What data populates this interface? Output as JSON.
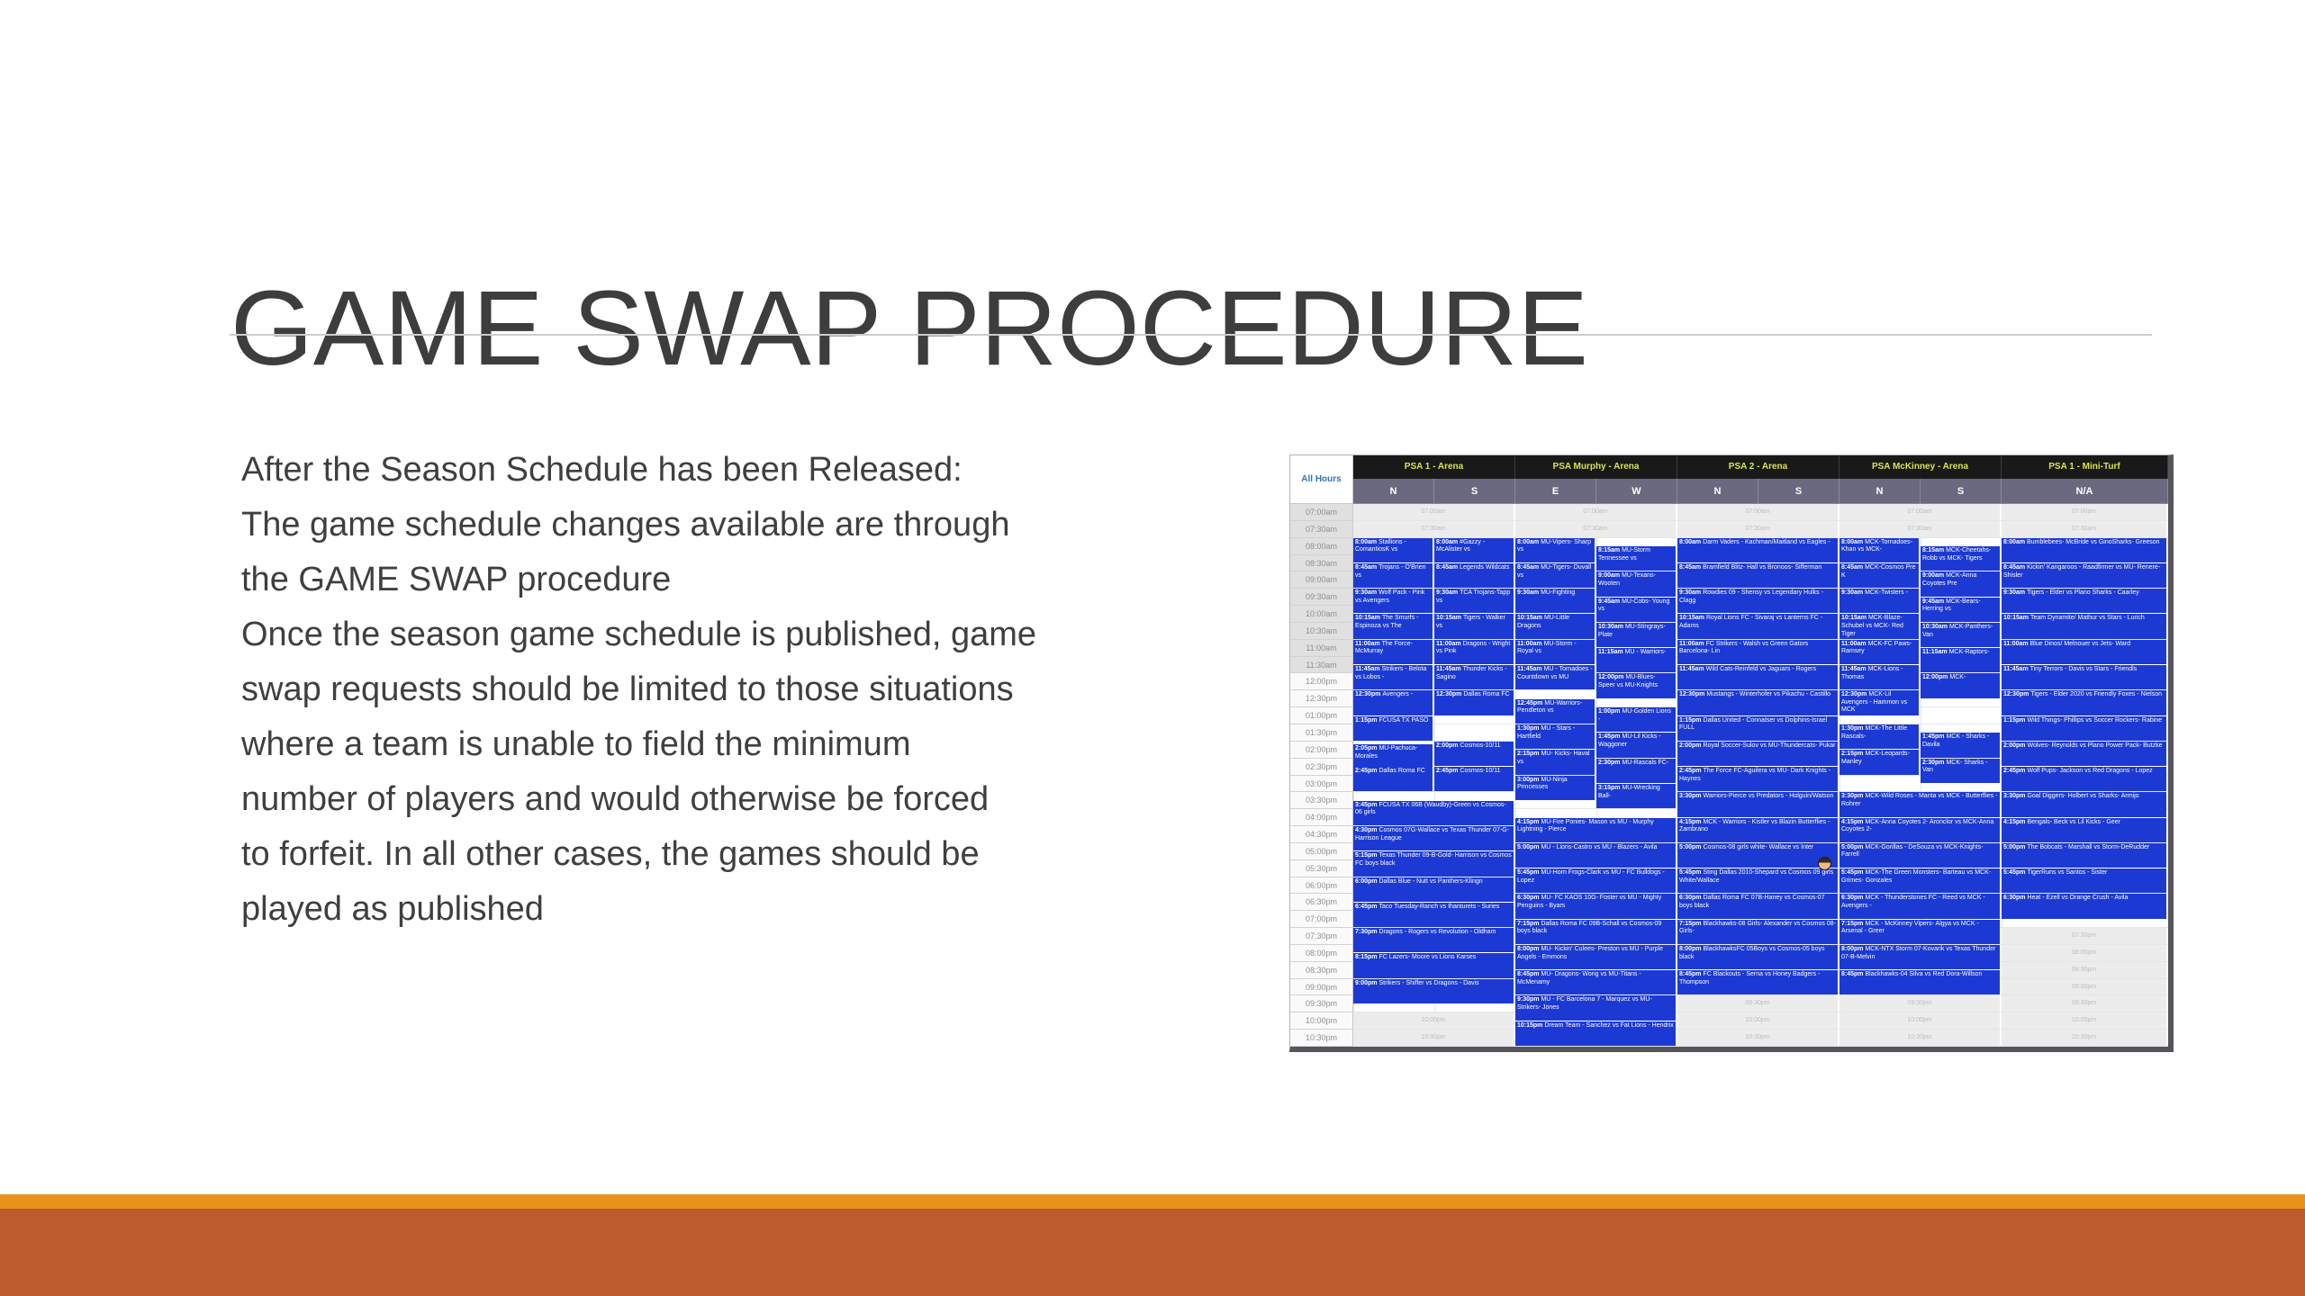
{
  "slide": {
    "title": "GAME SWAP PROCEDURE",
    "paragraphs": [
      "After the Season Schedule has been Released:",
      "The game schedule changes available are through\nthe GAME SWAP procedure",
      "Once the season game schedule is published, game\nswap requests should be limited to those situations\nwhere a team is unable to field the minimum\nnumber of players and would otherwise be forced\nto forfeit.  In all other cases, the games should be\nplayed as published"
    ],
    "accent_colors": {
      "thin_bar": "#e8921c",
      "thick_bar": "#bc5b2d",
      "text": "#3f3f3f"
    }
  },
  "schedule": {
    "corner_label": "All Hours",
    "default_duration_min": 45,
    "colors": {
      "event_blue": "#1c3ad3",
      "venue_header_bg": "#191919",
      "venue_header_text": "#d8e44c",
      "subheader_bg": "#6b697f",
      "empty_slot_bg": "#ececec",
      "corner_text": "#2e74b5"
    },
    "time_slots": [
      "07:00am",
      "07:30am",
      "08:00am",
      "08:30am",
      "09:00am",
      "09:30am",
      "10:00am",
      "10:30am",
      "11:00am",
      "11:30am",
      "12:00pm",
      "12:30pm",
      "01:00pm",
      "01:30pm",
      "02:00pm",
      "02:30pm",
      "03:00pm",
      "03:30pm",
      "04:00pm",
      "04:30pm",
      "05:00pm",
      "05:30pm",
      "06:00pm",
      "06:30pm",
      "07:00pm",
      "07:30pm",
      "08:00pm",
      "08:30pm",
      "09:00pm",
      "09:30pm",
      "10:00pm",
      "10:30pm"
    ],
    "empty_slot_labels_leading": [
      "07:00am",
      "07:30am"
    ],
    "venues": [
      {
        "name": "PSA 1 - Arena",
        "subs": [
          "N",
          "S"
        ],
        "empty_slot_labels_trailing": [
          "10:00pm",
          "10:30pm"
        ]
      },
      {
        "name": "PSA Murphy - Arena",
        "subs": [
          "E",
          "W"
        ],
        "empty_slot_labels_trailing": []
      },
      {
        "name": "PSA 2 - Arena",
        "subs": [
          "N",
          "S"
        ],
        "empty_slot_labels_trailing": [
          "09:30pm",
          "10:00pm",
          "10:30pm"
        ]
      },
      {
        "name": "PSA McKinney - Arena",
        "subs": [
          "N",
          "S"
        ],
        "empty_slot_labels_trailing": [
          "09:30pm",
          "10:00pm",
          "10:30pm"
        ]
      },
      {
        "name": "PSA 1 - Mini-Turf",
        "subs": [
          "N/A"
        ],
        "empty_slot_labels_trailing": [
          "07:30pm",
          "08:00pm",
          "08:30pm",
          "09:00pm",
          "09:30pm",
          "10:00pm",
          "10:30pm"
        ]
      }
    ],
    "events": [
      {
        "venue": 0,
        "col": "N",
        "start": "8:00am",
        "teams": "Stallions - ComantiosK vs"
      },
      {
        "venue": 0,
        "col": "N",
        "start": "8:45am",
        "teams": "Trojans - O'Brien vs"
      },
      {
        "venue": 0,
        "col": "N",
        "start": "9:30am",
        "teams": "Wolf Pack - Pink vs Avengers"
      },
      {
        "venue": 0,
        "col": "N",
        "start": "10:15am",
        "teams": "The Smurfs - Espinoza vs The"
      },
      {
        "venue": 0,
        "col": "N",
        "start": "11:00am",
        "teams": "The Force- McMurray"
      },
      {
        "venue": 0,
        "col": "N",
        "start": "11:45am",
        "teams": "Strikers - Belota vs Lobos -"
      },
      {
        "venue": 0,
        "col": "N",
        "start": "12:30pm",
        "teams": "Avengers -"
      },
      {
        "venue": 0,
        "col": "N",
        "start": "1:15pm",
        "teams": "FCUSA TX PASO"
      },
      {
        "venue": 0,
        "col": "N",
        "start": "2:05pm",
        "teams": "MU-Pachuca- Morales"
      },
      {
        "venue": 0,
        "col": "N",
        "start": "2:45pm",
        "teams": "Dallas Roma FC"
      },
      {
        "venue": 0,
        "col": "S",
        "start": "8:00am",
        "teams": "#Gazzy - McAlister vs"
      },
      {
        "venue": 0,
        "col": "S",
        "start": "8:45am",
        "teams": "Legends Wildcats"
      },
      {
        "venue": 0,
        "col": "S",
        "start": "9:30am",
        "teams": "TCA Trojans-Tapp vs"
      },
      {
        "venue": 0,
        "col": "S",
        "start": "10:15am",
        "teams": "Tigers - Walker vs"
      },
      {
        "venue": 0,
        "col": "S",
        "start": "11:00am",
        "teams": "Dragons - Wright vs Pink"
      },
      {
        "venue": 0,
        "col": "S",
        "start": "11:45am",
        "teams": "Thunder Kicks - Sagino"
      },
      {
        "venue": 0,
        "col": "S",
        "start": "12:30pm",
        "teams": "Dallas Roma FC"
      },
      {
        "venue": 0,
        "col": "S",
        "start": "2:00pm",
        "teams": "Cosmos-10/11"
      },
      {
        "venue": 0,
        "col": "S",
        "start": "2:45pm",
        "teams": "Cosmos-10/11"
      },
      {
        "venue": 0,
        "col": "full",
        "start": "3:45pm",
        "teams": "FCUSA TX 06B (Waudby)-Green vs Cosmos-06 girls"
      },
      {
        "venue": 0,
        "col": "full",
        "start": "4:30pm",
        "teams": "Cosmos 07G-Wallace vs Texas Thunder 07-G-Harrison League"
      },
      {
        "venue": 0,
        "col": "full",
        "start": "5:15pm",
        "teams": "Texas Thunder 09-B-Gold- Harrison vs Cosmos FC boys black"
      },
      {
        "venue": 0,
        "col": "full",
        "start": "6:00pm",
        "teams": "Dallas Blue - Nutt vs Panthers-Klingn"
      },
      {
        "venue": 0,
        "col": "full",
        "start": "6:45pm",
        "teams": "Taco Tuesday-Ranch vs Ihanturets - Suries"
      },
      {
        "venue": 0,
        "col": "full",
        "start": "7:30pm",
        "teams": "Dragons - Rogers vs Revolution - Oldham"
      },
      {
        "venue": 0,
        "col": "full",
        "start": "8:15pm",
        "teams": "FC Lazers- Moore vs Lions Karses"
      },
      {
        "venue": 0,
        "col": "full",
        "start": "9:00pm",
        "teams": "Strikers - Shiffer vs Dragons - Davis"
      },
      {
        "venue": 1,
        "col": "E",
        "start": "8:00am",
        "teams": "MU-Vipers- Sharp vs"
      },
      {
        "venue": 1,
        "col": "E",
        "start": "8:45am",
        "teams": "MU-Tigers- Duvall vs"
      },
      {
        "venue": 1,
        "col": "E",
        "start": "9:30am",
        "teams": "MU-Fighting"
      },
      {
        "venue": 1,
        "col": "E",
        "start": "10:15am",
        "teams": "MU-Little Dragons"
      },
      {
        "venue": 1,
        "col": "E",
        "start": "11:00am",
        "teams": "MU-Storm - Royal vs"
      },
      {
        "venue": 1,
        "col": "E",
        "start": "11:45am",
        "teams": "MU - Tornadoes - Countdown vs MU"
      },
      {
        "venue": 1,
        "col": "E",
        "start": "12:45pm",
        "teams": "MU-Warriors- Pendleton vs"
      },
      {
        "venue": 1,
        "col": "E",
        "start": "1:30pm",
        "teams": "MU - Stars - Hartfield"
      },
      {
        "venue": 1,
        "col": "E",
        "start": "2:15pm",
        "teams": "MU- Kicks- Haval vs"
      },
      {
        "venue": 1,
        "col": "E",
        "start": "3:00pm",
        "teams": "MU-Ninja Princesses"
      },
      {
        "venue": 1,
        "col": "W",
        "start": "8:15am",
        "teams": "MU-Storm Tennessee vs"
      },
      {
        "venue": 1,
        "col": "W",
        "start": "9:00am",
        "teams": "MU-Texans- Wooten"
      },
      {
        "venue": 1,
        "col": "W",
        "start": "9:45am",
        "teams": "MU-Cobs- Young vs"
      },
      {
        "venue": 1,
        "col": "W",
        "start": "10:30am",
        "teams": "MU-Stingrays- Plate"
      },
      {
        "venue": 1,
        "col": "W",
        "start": "11:15am",
        "teams": "MU - Warriors-"
      },
      {
        "venue": 1,
        "col": "W",
        "start": "12:00pm",
        "teams": "MU-Blues- Speer vs MU-Knights"
      },
      {
        "venue": 1,
        "col": "W",
        "start": "1:00pm",
        "teams": "MU-Golden Lions -"
      },
      {
        "venue": 1,
        "col": "W",
        "start": "1:45pm",
        "teams": "MU-Lil Kicks - Waggoner"
      },
      {
        "venue": 1,
        "col": "W",
        "start": "2:30pm",
        "teams": "MU-Rascals FC-"
      },
      {
        "venue": 1,
        "col": "W",
        "start": "3:15pm",
        "teams": "MU-Wrecking Ball-"
      },
      {
        "venue": 1,
        "col": "full",
        "start": "4:15pm",
        "teams": "MU-Fire Ponies- Mason vs MU - Murphy Lightning - Pierce"
      },
      {
        "venue": 1,
        "col": "full",
        "start": "5:00pm",
        "teams": "MU - Lions-Castro vs MU - Blazers - Avila"
      },
      {
        "venue": 1,
        "col": "full",
        "start": "5:45pm",
        "teams": "MU-Horn Frogs-Clark vs MU - FC Bulldogs - Lopez"
      },
      {
        "venue": 1,
        "col": "full",
        "start": "6:30pm",
        "teams": "MU- FC KAOS 10G- Foster vs MU - Mighty Penguins - Byars"
      },
      {
        "venue": 1,
        "col": "full",
        "start": "7:15pm",
        "teams": "Dallas Roma FC 09B-Schall vs Cosmos-09 boys black"
      },
      {
        "venue": 1,
        "col": "full",
        "start": "8:00pm",
        "teams": "MU- Kickin' Culees- Preston vs MU - Purple Angels - Emmons"
      },
      {
        "venue": 1,
        "col": "full",
        "start": "8:45pm",
        "teams": "MU- Dragons- Wong vs MU-Titans - McMenamy"
      },
      {
        "venue": 1,
        "col": "full",
        "start": "9:30pm",
        "teams": "MU - FC Barcelona 7 - Marquez vs MU-Strikers- Jones"
      },
      {
        "venue": 1,
        "col": "full",
        "start": "10:15pm",
        "teams": "Dream Team - Sanchez vs Fat Lions - Hendrix"
      },
      {
        "venue": 2,
        "col": "full",
        "start": "8:00am",
        "teams": "Darm Vaders - Kachman/Maitland vs Eagles -"
      },
      {
        "venue": 2,
        "col": "full",
        "start": "8:45am",
        "teams": "Bramfield Blitz- Hall vs Bronoos- Sifferman"
      },
      {
        "venue": 2,
        "col": "full",
        "start": "9:30am",
        "teams": "Rowdies 09 - Shensy vs Legendary Hulks - Clagg"
      },
      {
        "venue": 2,
        "col": "full",
        "start": "10:15am",
        "teams": "Royal Lions FC - Sivaraj vs Lanterns FC - Adams"
      },
      {
        "venue": 2,
        "col": "full",
        "start": "11:00am",
        "teams": "FC Strikers - Walsh vs Green Gators Barcelona- Lin"
      },
      {
        "venue": 2,
        "col": "full",
        "start": "11:45am",
        "teams": "Wild Cats-Reinfeld vs Jaguars - Rogers"
      },
      {
        "venue": 2,
        "col": "full",
        "start": "12:30pm",
        "teams": "Mustangs - Winterhofer vs Pikachu - Castillo"
      },
      {
        "venue": 2,
        "col": "full",
        "start": "1:15pm",
        "teams": "Dallas United - Connatser vs Dolphins-Israel FULL"
      },
      {
        "venue": 2,
        "col": "full",
        "start": "2:00pm",
        "teams": "Royal Soccer-Sulov vs MU-Thundercats- Pukar"
      },
      {
        "venue": 2,
        "col": "full",
        "start": "2:45pm",
        "teams": "The Force FC-Aguilera vs MU- Dark Knights - Haynes"
      },
      {
        "venue": 2,
        "col": "full",
        "start": "3:30pm",
        "teams": "Warriors-Pierce vs Predators - Holguin/Watson"
      },
      {
        "venue": 2,
        "col": "full",
        "start": "4:15pm",
        "teams": "MCK - Warriors - Kistler vs Blazin Butterflies - Zambrano"
      },
      {
        "venue": 2,
        "col": "full",
        "start": "5:00pm",
        "teams": "Cosmos-08 girls white- Wallace vs Inter",
        "icon": "face-emoji-icon"
      },
      {
        "venue": 2,
        "col": "full",
        "start": "5:45pm",
        "teams": "Sting Dallas 2010-Shepard vs Cosmos 09 girls White/Wallace"
      },
      {
        "venue": 2,
        "col": "full",
        "start": "6:30pm",
        "teams": "Dallas Roma FC 07B-Haney vs Cosmos-07 boys black"
      },
      {
        "venue": 2,
        "col": "full",
        "start": "7:15pm",
        "teams": "Blackhawks-08 Girls- Alexander vs Cosmos 08-Girls-"
      },
      {
        "venue": 2,
        "col": "full",
        "start": "8:00pm",
        "teams": "BlackhawksFC 05Boys vs Cosmos-05 boys black"
      },
      {
        "venue": 2,
        "col": "full",
        "start": "8:45pm",
        "teams": "FC Blackouts - Serna vs Honey Badgers - Thompson"
      },
      {
        "venue": 3,
        "col": "N",
        "start": "8:00am",
        "teams": "MCK-Tornadoes- Khan vs MCK-"
      },
      {
        "venue": 3,
        "col": "N",
        "start": "8:45am",
        "teams": "MCK-Cosmos Pre K"
      },
      {
        "venue": 3,
        "col": "N",
        "start": "9:30am",
        "teams": "MCK-Twisters -"
      },
      {
        "venue": 3,
        "col": "N",
        "start": "10:15am",
        "teams": "MCK-Blaze- Schubel vs MCK- Red Tiger"
      },
      {
        "venue": 3,
        "col": "N",
        "start": "11:00am",
        "teams": "MCK-FC Paws- Ramsey"
      },
      {
        "venue": 3,
        "col": "N",
        "start": "11:45am",
        "teams": "MCK-Lions - Thomas"
      },
      {
        "venue": 3,
        "col": "N",
        "start": "12:30pm",
        "teams": "MCK-Lil Avengers - Hammon vs MCK"
      },
      {
        "venue": 3,
        "col": "N",
        "start": "1:30pm",
        "teams": "MCK-The Little Rascals-"
      },
      {
        "venue": 3,
        "col": "N",
        "start": "2:15pm",
        "teams": "MCK-Leopards- Manley"
      },
      {
        "venue": 3,
        "col": "S",
        "start": "8:15am",
        "teams": "MCK-Cheetahs- Robb vs MCK- Tigers"
      },
      {
        "venue": 3,
        "col": "S",
        "start": "9:00am",
        "teams": "MCK-Anna Coyotes Pre"
      },
      {
        "venue": 3,
        "col": "S",
        "start": "9:45am",
        "teams": "MCK-Bears- Herring vs"
      },
      {
        "venue": 3,
        "col": "S",
        "start": "10:30am",
        "teams": "MCK-Panthers- Van"
      },
      {
        "venue": 3,
        "col": "S",
        "start": "11:15am",
        "teams": "MCK-Raptors-"
      },
      {
        "venue": 3,
        "col": "S",
        "start": "12:00pm",
        "teams": "MCK-"
      },
      {
        "venue": 3,
        "col": "S",
        "start": "1:45pm",
        "teams": "MCK - Sharks - Davila"
      },
      {
        "venue": 3,
        "col": "S",
        "start": "2:30pm",
        "teams": "MCK- Sharks - Van"
      },
      {
        "venue": 3,
        "col": "full",
        "start": "3:30pm",
        "teams": "MCK-Wild Roses - Manta vs MCK - Butterflies - Rohrer"
      },
      {
        "venue": 3,
        "col": "full",
        "start": "4:15pm",
        "teams": "MCK-Anna Coyotes 2- Aronclor vs MCK-Anna Coyotes 2-"
      },
      {
        "venue": 3,
        "col": "full",
        "start": "5:00pm",
        "teams": "MCK-Gorillas - DeSouza vs MCK-Knights-Farrell"
      },
      {
        "venue": 3,
        "col": "full",
        "start": "5:45pm",
        "teams": "MCK-The Green Monsters- Barteau vs MCK-Grimes- Gonzales"
      },
      {
        "venue": 3,
        "col": "full",
        "start": "6:30pm",
        "teams": "MCK - Thunderstones FC - Reed vs MCK - Avengers -"
      },
      {
        "venue": 3,
        "col": "full",
        "start": "7:15pm",
        "teams": "MCK - McKinney Vipers- Algya vs MCK -Arsenal - Greer"
      },
      {
        "venue": 3,
        "col": "full",
        "start": "8:00pm",
        "teams": "MCK-NTX Storm 07-Kovarik vs Texas Thunder 07-B-Melvin"
      },
      {
        "venue": 3,
        "col": "full",
        "start": "8:45pm",
        "teams": "Blackhawks-04 Silva vs Red Dora-Willson"
      },
      {
        "venue": 4,
        "col": "N/A",
        "start": "8:00am",
        "teams": "Bumblebees- McBride vs GinoSharks- Greeson"
      },
      {
        "venue": 4,
        "col": "N/A",
        "start": "8:45am",
        "teams": "Kickin' Kangaroos - Raadfirmer vs MU- Renere- Shisler"
      },
      {
        "venue": 4,
        "col": "N/A",
        "start": "9:30am",
        "teams": "Tigers - Elder vs Plano Sharks - Caarley"
      },
      {
        "venue": 4,
        "col": "N/A",
        "start": "10:15am",
        "teams": "Team Dynamite/ Mathur vs Stars - Lurich"
      },
      {
        "venue": 4,
        "col": "N/A",
        "start": "11:00am",
        "teams": "Blue Dinos/ Melnouer vs Jets- Ward"
      },
      {
        "venue": 4,
        "col": "N/A",
        "start": "11:45am",
        "teams": "Tiny Terrors - Davis vs Stars - Friendls"
      },
      {
        "venue": 4,
        "col": "N/A",
        "start": "12:30pm",
        "teams": "Tigers - Elder 2020 vs Friendly Foxes - Nielson"
      },
      {
        "venue": 4,
        "col": "N/A",
        "start": "1:15pm",
        "teams": "Wild Things- Phillips vs Soccer Rockers- Rabine"
      },
      {
        "venue": 4,
        "col": "N/A",
        "start": "2:00pm",
        "teams": "Wolves- Reynolds vs Plano Power Pack- Butzke"
      },
      {
        "venue": 4,
        "col": "N/A",
        "start": "2:45pm",
        "teams": "Wolf Pups- Jackson vs Red Dragons - Lopez"
      },
      {
        "venue": 4,
        "col": "N/A",
        "start": "3:30pm",
        "teams": "Goal Diggers- Holbert vs Sharks- Armijo"
      },
      {
        "venue": 4,
        "col": "N/A",
        "start": "4:15pm",
        "teams": "Bengals- Beck vs Lil Kicks - Geer"
      },
      {
        "venue": 4,
        "col": "N/A",
        "start": "5:00pm",
        "teams": "The Bobcats - Marshall vs Storm-DeRudder"
      },
      {
        "venue": 4,
        "col": "N/A",
        "start": "5:45pm",
        "teams": "TigerRuns vs Santos - Sister"
      },
      {
        "venue": 4,
        "col": "N/A",
        "start": "6:30pm",
        "teams": "Heat - Ezell vs Orange Crush - Avila"
      }
    ]
  }
}
